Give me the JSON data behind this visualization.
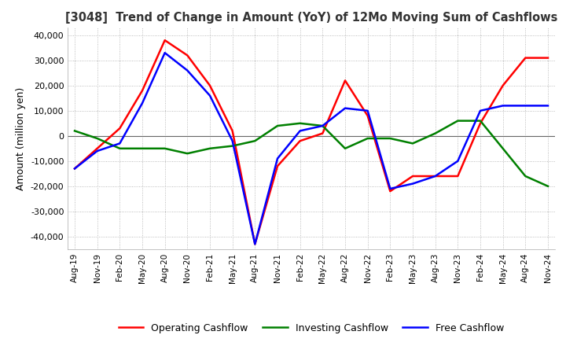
{
  "title": "[3048]  Trend of Change in Amount (YoY) of 12Mo Moving Sum of Cashflows",
  "ylabel": "Amount (million yen)",
  "ylim": [
    -45000,
    43000
  ],
  "yticks": [
    -40000,
    -30000,
    -20000,
    -10000,
    0,
    10000,
    20000,
    30000,
    40000
  ],
  "background_color": "#ffffff",
  "grid_color": "#aaaaaa",
  "dates": [
    "Aug-19",
    "Nov-19",
    "Feb-20",
    "May-20",
    "Aug-20",
    "Nov-20",
    "Feb-21",
    "May-21",
    "Aug-21",
    "Nov-21",
    "Feb-22",
    "May-22",
    "Aug-22",
    "Nov-22",
    "Feb-23",
    "May-23",
    "Aug-23",
    "Nov-23",
    "Feb-24",
    "May-24",
    "Aug-24",
    "Nov-24"
  ],
  "operating": [
    -13000,
    -5000,
    3000,
    18000,
    38000,
    32000,
    20000,
    2000,
    -43000,
    -12000,
    -2000,
    1000,
    22000,
    8000,
    -22000,
    -16000,
    -16000,
    -16000,
    5000,
    20000,
    31000,
    31000
  ],
  "investing": [
    2000,
    -1000,
    -5000,
    -5000,
    -5000,
    -7000,
    -5000,
    -4000,
    -2000,
    4000,
    5000,
    4000,
    -5000,
    -1000,
    -1000,
    -3000,
    1000,
    6000,
    6000,
    -5000,
    -16000,
    -20000
  ],
  "free": [
    -13000,
    -6000,
    -3000,
    13000,
    33000,
    26000,
    16000,
    -2000,
    -43000,
    -9000,
    2000,
    4000,
    11000,
    10000,
    -21000,
    -19000,
    -16000,
    -10000,
    10000,
    12000,
    12000,
    12000
  ],
  "operating_color": "#ff0000",
  "investing_color": "#008000",
  "free_color": "#0000ff",
  "legend_labels": [
    "Operating Cashflow",
    "Investing Cashflow",
    "Free Cashflow"
  ]
}
